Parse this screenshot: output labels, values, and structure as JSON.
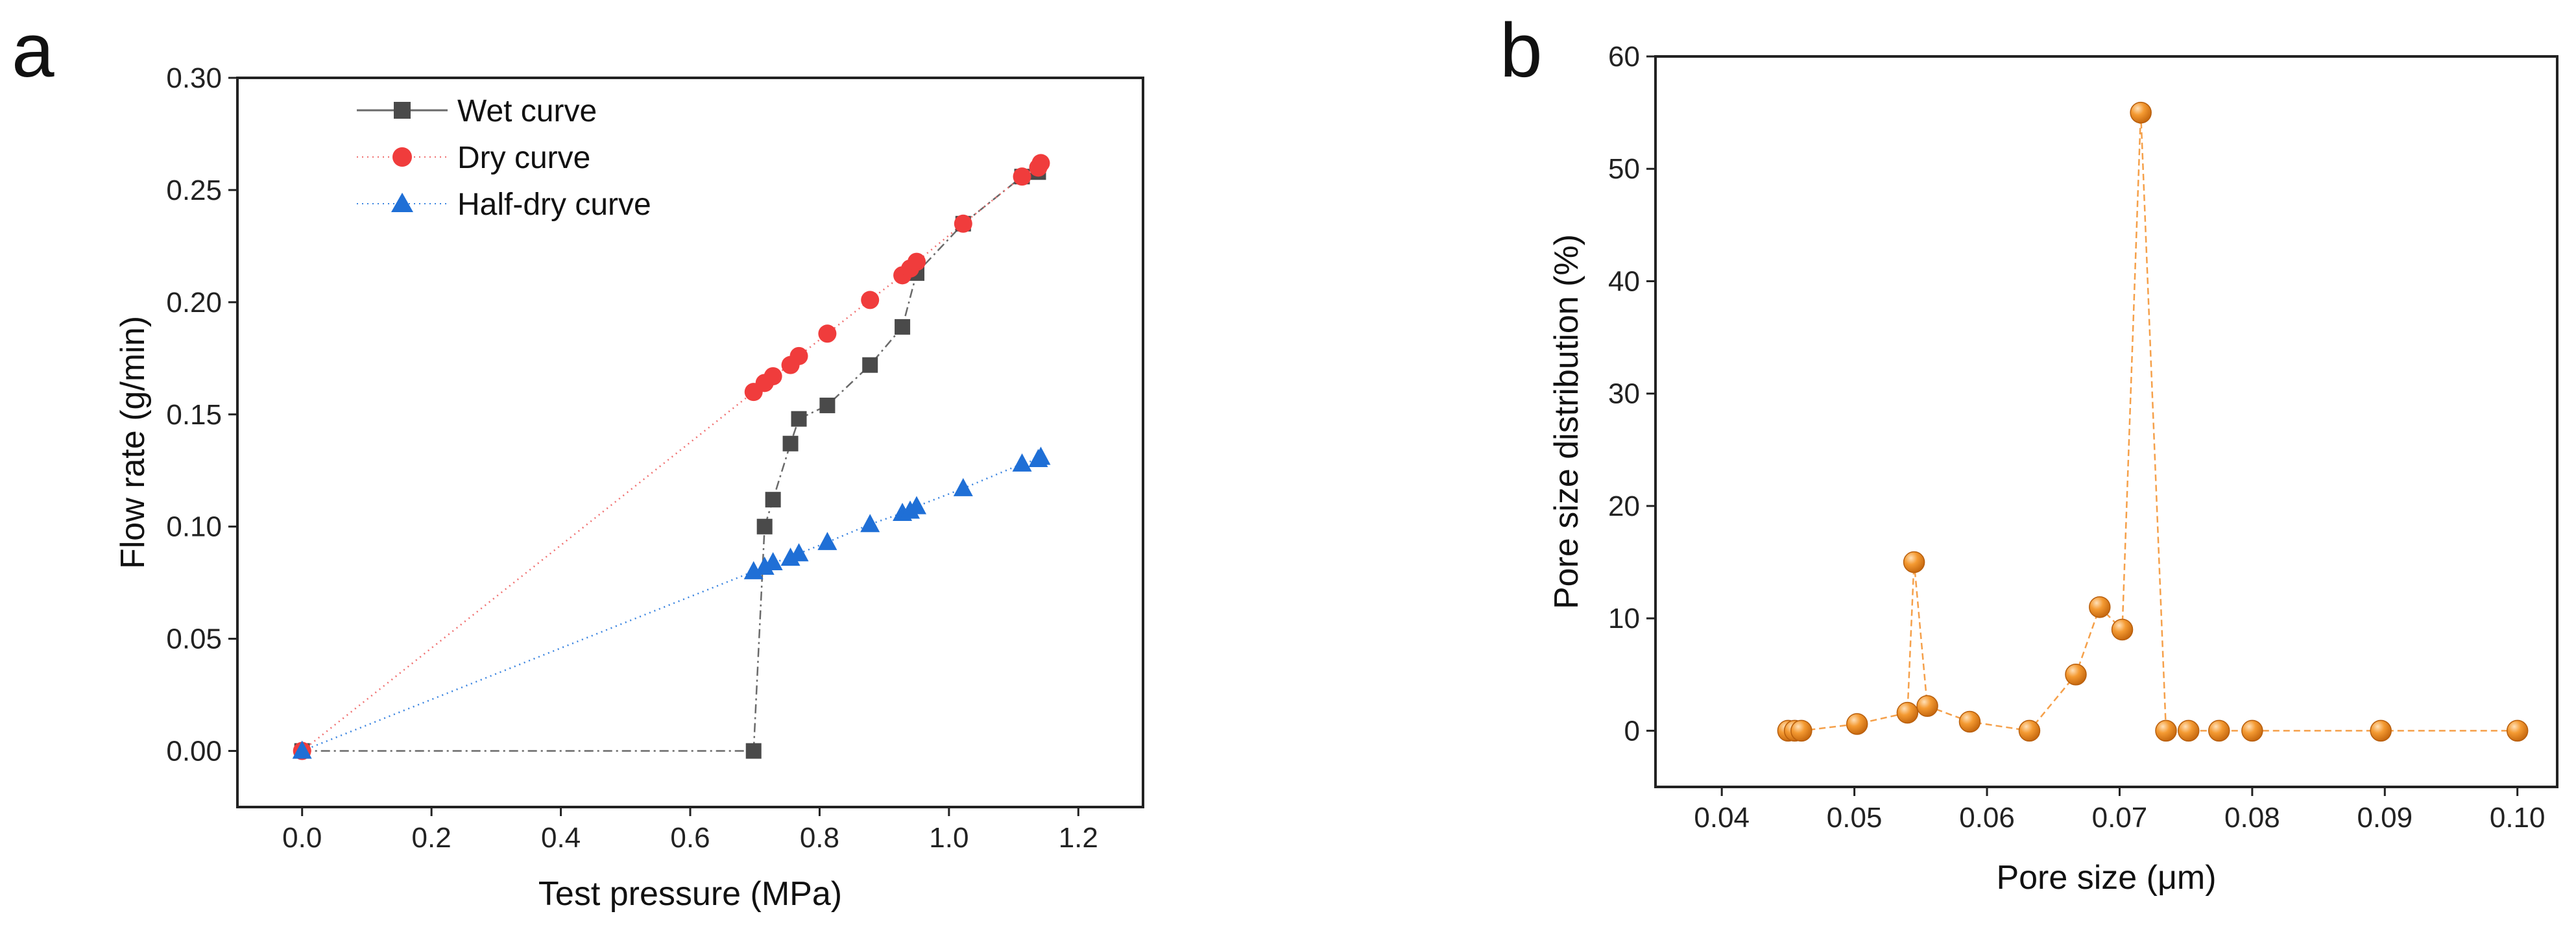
{
  "chart_data": [
    {
      "type": "line",
      "panel_label": "a",
      "title": "",
      "xlabel": "Test pressure (MPa)",
      "ylabel": "Flow rate (g/min)",
      "xlim": [
        -0.1,
        1.3
      ],
      "ylim": [
        -0.025,
        0.3
      ],
      "xticks": [
        0.0,
        0.2,
        0.4,
        0.6,
        0.8,
        1.0,
        1.2
      ],
      "xtick_labels": [
        "0.0",
        "0.2",
        "0.4",
        "0.6",
        "0.8",
        "1.0",
        "1.2"
      ],
      "yticks": [
        0.0,
        0.05,
        0.1,
        0.15,
        0.2,
        0.25,
        0.3
      ],
      "ytick_labels": [
        "0.00",
        "0.05",
        "0.10",
        "0.15",
        "0.20",
        "0.25",
        "0.30"
      ],
      "grid": false,
      "legend_position": "top-left",
      "series": [
        {
          "name": "Wet curve",
          "marker": "square",
          "color": "#4a4a4a",
          "line_color": "#6a6a6a",
          "line_style": "dash-dot",
          "x": [
            0.0,
            0.698,
            0.715,
            0.728,
            0.755,
            0.768,
            0.812,
            0.878,
            0.928,
            0.95,
            1.022,
            1.113,
            1.138
          ],
          "y": [
            0.0,
            0.0,
            0.1,
            0.112,
            0.137,
            0.148,
            0.154,
            0.172,
            0.189,
            0.213,
            0.235,
            0.256,
            0.258
          ]
        },
        {
          "name": "Dry curve",
          "marker": "circle",
          "color": "#f03c3c",
          "line_color": "#f07070",
          "line_style": "dotted",
          "x": [
            0.0,
            0.698,
            0.715,
            0.728,
            0.755,
            0.768,
            0.812,
            0.878,
            0.928,
            0.94,
            0.95,
            1.022,
            1.113,
            1.138,
            1.142
          ],
          "y": [
            0.0,
            0.16,
            0.164,
            0.167,
            0.172,
            0.176,
            0.186,
            0.201,
            0.212,
            0.215,
            0.218,
            0.235,
            0.256,
            0.26,
            0.262
          ]
        },
        {
          "name": "Half-dry curve",
          "marker": "triangle",
          "color": "#1f6fd6",
          "line_color": "#3a84e0",
          "line_style": "dotted",
          "x": [
            0.0,
            0.698,
            0.715,
            0.728,
            0.755,
            0.768,
            0.812,
            0.878,
            0.928,
            0.94,
            0.95,
            1.022,
            1.113,
            1.138,
            1.142
          ],
          "y": [
            0.0,
            0.08,
            0.082,
            0.084,
            0.086,
            0.088,
            0.093,
            0.101,
            0.106,
            0.107,
            0.109,
            0.117,
            0.128,
            0.13,
            0.131
          ]
        }
      ]
    },
    {
      "type": "line",
      "panel_label": "b",
      "title": "",
      "xlabel": "Pore size (μm)",
      "ylabel": "Pore size distribution (%)",
      "xlim": [
        0.035,
        0.103
      ],
      "ylim": [
        -5,
        60
      ],
      "xticks": [
        0.04,
        0.05,
        0.06,
        0.07,
        0.08,
        0.09,
        0.1
      ],
      "xtick_labels": [
        "0.04",
        "0.05",
        "0.06",
        "0.07",
        "0.08",
        "0.09",
        "0.10"
      ],
      "yticks": [
        0,
        10,
        20,
        30,
        40,
        50,
        60
      ],
      "ytick_labels": [
        "0",
        "10",
        "20",
        "30",
        "40",
        "50",
        "60"
      ],
      "grid": false,
      "series": [
        {
          "name": "Pore size distribution",
          "marker": "sphere",
          "color": "#f28a1e",
          "line_color": "#f5a04a",
          "line_style": "dashed",
          "x": [
            0.045,
            0.0455,
            0.046,
            0.0502,
            0.054,
            0.0545,
            0.0555,
            0.0587,
            0.0632,
            0.0667,
            0.0685,
            0.0702,
            0.0716,
            0.0735,
            0.0752,
            0.0775,
            0.08,
            0.0897,
            0.1
          ],
          "y": [
            0,
            0,
            0,
            0.6,
            1.6,
            15,
            2.2,
            0.8,
            0,
            5,
            11,
            9,
            55,
            0,
            0,
            0,
            0,
            0,
            0
          ]
        }
      ]
    }
  ]
}
